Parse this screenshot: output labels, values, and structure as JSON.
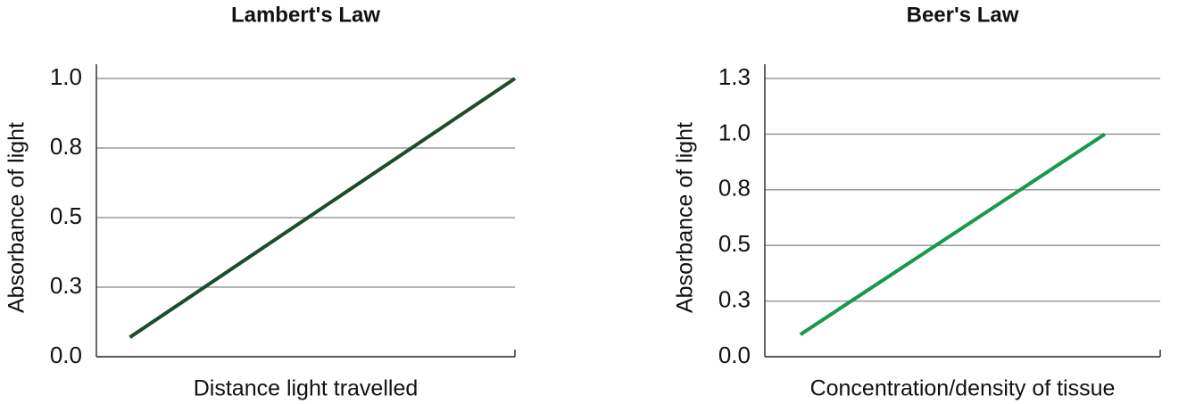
{
  "chart_data": [
    {
      "type": "line",
      "title": "Lambert's Law",
      "x_label": "Distance light travelled",
      "y_label": "Absorbance of light",
      "xlim": [
        0,
        1
      ],
      "ylim": [
        0,
        1
      ],
      "yticks": [
        {
          "value": 0,
          "label": "0.0"
        },
        {
          "value": 0.25,
          "label": "0.3"
        },
        {
          "value": 0.5,
          "label": "0.5"
        },
        {
          "value": 0.75,
          "label": "0.8"
        },
        {
          "value": 1,
          "label": "1.0"
        }
      ],
      "grid": true,
      "series": [
        {
          "color": "#1b4d2c",
          "x": [
            0.08,
            1
          ],
          "values": [
            0.07,
            1
          ]
        }
      ]
    },
    {
      "type": "line",
      "title": "Beer's Law",
      "x_label": "Concentration/density of tissue",
      "y_label": "Absorbance of light",
      "xlim": [
        0,
        1
      ],
      "ylim": [
        0,
        1.25
      ],
      "yticks": [
        {
          "value": 0,
          "label": "0.0"
        },
        {
          "value": 0.25,
          "label": "0.3"
        },
        {
          "value": 0.5,
          "label": "0.5"
        },
        {
          "value": 0.75,
          "label": "0.8"
        },
        {
          "value": 1,
          "label": "1.0"
        },
        {
          "value": 1.25,
          "label": "1.3"
        }
      ],
      "grid": true,
      "series": [
        {
          "color": "#17994a",
          "x": [
            0.09,
            0.86
          ],
          "values": [
            0.1,
            1
          ]
        }
      ]
    }
  ]
}
